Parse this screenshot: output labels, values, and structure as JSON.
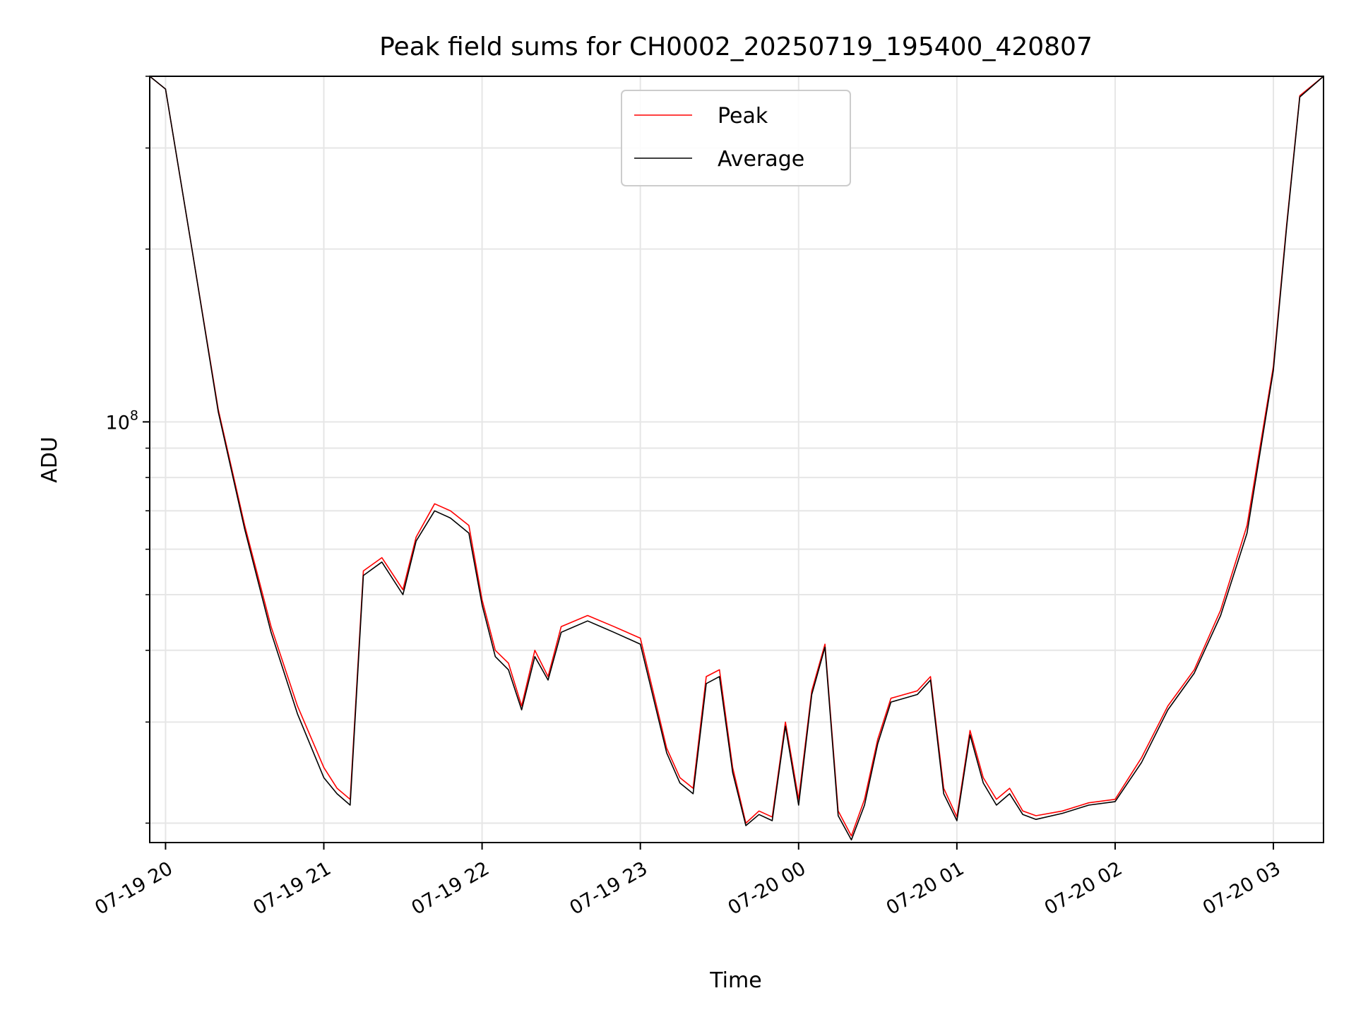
{
  "chart_data": {
    "type": "line",
    "title": "Peak field sums for CH0002_20250719_195400_420807",
    "xlabel": "Time",
    "ylabel": "ADU",
    "x_tick_labels": [
      "07-19 20",
      "07-19 21",
      "07-19 22",
      "07-19 23",
      "07-20 00",
      "07-20 01",
      "07-20 02",
      "07-20 03"
    ],
    "y_tick_major": {
      "base": "10",
      "exponent": "8",
      "value": 100000000
    },
    "yscale": "log",
    "xlim": [
      "2025-07-19 19:54",
      "2025-07-20 03:19"
    ],
    "ylim": [
      18500000,
      400000000
    ],
    "grid": true,
    "legend_position": "upper center",
    "colors": {
      "Peak": "#ff0000",
      "Average": "#000000"
    },
    "series": [
      {
        "name": "Peak",
        "x": [
          "2025-07-19 19:54",
          "2025-07-19 20:00",
          "2025-07-19 20:10",
          "2025-07-19 20:20",
          "2025-07-19 20:30",
          "2025-07-19 20:40",
          "2025-07-19 20:50",
          "2025-07-19 21:00",
          "2025-07-19 21:05",
          "2025-07-19 21:10",
          "2025-07-19 21:15",
          "2025-07-19 21:22",
          "2025-07-19 21:30",
          "2025-07-19 21:35",
          "2025-07-19 21:42",
          "2025-07-19 21:48",
          "2025-07-19 21:55",
          "2025-07-19 22:00",
          "2025-07-19 22:05",
          "2025-07-19 22:10",
          "2025-07-19 22:15",
          "2025-07-19 22:20",
          "2025-07-19 22:25",
          "2025-07-19 22:30",
          "2025-07-19 22:40",
          "2025-07-19 22:50",
          "2025-07-19 23:00",
          "2025-07-19 23:10",
          "2025-07-19 23:15",
          "2025-07-19 23:20",
          "2025-07-19 23:25",
          "2025-07-19 23:30",
          "2025-07-19 23:35",
          "2025-07-19 23:40",
          "2025-07-19 23:45",
          "2025-07-19 23:50",
          "2025-07-19 23:55",
          "2025-07-20 00:00",
          "2025-07-20 00:05",
          "2025-07-20 00:10",
          "2025-07-20 00:15",
          "2025-07-20 00:20",
          "2025-07-20 00:25",
          "2025-07-20 00:30",
          "2025-07-20 00:35",
          "2025-07-20 00:45",
          "2025-07-20 00:50",
          "2025-07-20 00:55",
          "2025-07-20 01:00",
          "2025-07-20 01:05",
          "2025-07-20 01:10",
          "2025-07-20 01:15",
          "2025-07-20 01:20",
          "2025-07-20 01:25",
          "2025-07-20 01:30",
          "2025-07-20 01:40",
          "2025-07-20 01:50",
          "2025-07-20 02:00",
          "2025-07-20 02:10",
          "2025-07-20 02:20",
          "2025-07-20 02:30",
          "2025-07-20 02:40",
          "2025-07-20 02:50",
          "2025-07-20 03:00",
          "2025-07-20 03:05",
          "2025-07-20 03:10",
          "2025-07-20 03:19"
        ],
        "y": [
          400000000,
          380000000,
          200000000,
          105000000,
          66000000,
          44000000,
          32000000,
          25000000,
          23000000,
          22000000,
          55000000,
          58000000,
          51000000,
          63000000,
          72000000,
          70000000,
          66000000,
          49000000,
          40000000,
          38000000,
          32000000,
          40000000,
          36000000,
          44000000,
          46000000,
          44000000,
          42000000,
          27000000,
          24000000,
          23000000,
          36000000,
          37000000,
          25000000,
          20000000,
          21000000,
          20500000,
          30000000,
          22000000,
          34000000,
          41000000,
          21000000,
          19000000,
          22000000,
          28000000,
          33000000,
          34000000,
          36000000,
          23000000,
          20500000,
          29000000,
          24000000,
          22000000,
          23000000,
          21000000,
          20600000,
          21000000,
          21700000,
          22000000,
          26000000,
          32000000,
          37000000,
          47000000,
          66000000,
          125000000,
          220000000,
          370000000,
          400000000
        ]
      },
      {
        "name": "Average",
        "x": [
          "2025-07-19 19:54",
          "2025-07-19 20:00",
          "2025-07-19 20:10",
          "2025-07-19 20:20",
          "2025-07-19 20:30",
          "2025-07-19 20:40",
          "2025-07-19 20:50",
          "2025-07-19 21:00",
          "2025-07-19 21:05",
          "2025-07-19 21:10",
          "2025-07-19 21:15",
          "2025-07-19 21:22",
          "2025-07-19 21:30",
          "2025-07-19 21:35",
          "2025-07-19 21:42",
          "2025-07-19 21:48",
          "2025-07-19 21:55",
          "2025-07-19 22:00",
          "2025-07-19 22:05",
          "2025-07-19 22:10",
          "2025-07-19 22:15",
          "2025-07-19 22:20",
          "2025-07-19 22:25",
          "2025-07-19 22:30",
          "2025-07-19 22:40",
          "2025-07-19 22:50",
          "2025-07-19 23:00",
          "2025-07-19 23:10",
          "2025-07-19 23:15",
          "2025-07-19 23:20",
          "2025-07-19 23:25",
          "2025-07-19 23:30",
          "2025-07-19 23:35",
          "2025-07-19 23:40",
          "2025-07-19 23:45",
          "2025-07-19 23:50",
          "2025-07-19 23:55",
          "2025-07-20 00:00",
          "2025-07-20 00:05",
          "2025-07-20 00:10",
          "2025-07-20 00:15",
          "2025-07-20 00:20",
          "2025-07-20 00:25",
          "2025-07-20 00:30",
          "2025-07-20 00:35",
          "2025-07-20 00:45",
          "2025-07-20 00:50",
          "2025-07-20 00:55",
          "2025-07-20 01:00",
          "2025-07-20 01:05",
          "2025-07-20 01:10",
          "2025-07-20 01:15",
          "2025-07-20 01:20",
          "2025-07-20 01:25",
          "2025-07-20 01:30",
          "2025-07-20 01:40",
          "2025-07-20 01:50",
          "2025-07-20 02:00",
          "2025-07-20 02:10",
          "2025-07-20 02:20",
          "2025-07-20 02:30",
          "2025-07-20 02:40",
          "2025-07-20 02:50",
          "2025-07-20 03:00",
          "2025-07-20 03:05",
          "2025-07-20 03:10",
          "2025-07-20 03:19"
        ],
        "y": [
          400000000,
          380000000,
          200000000,
          104000000,
          65000000,
          43000000,
          31000000,
          24000000,
          22500000,
          21500000,
          54000000,
          57000000,
          50000000,
          62000000,
          70000000,
          68000000,
          64000000,
          48000000,
          39000000,
          37000000,
          31500000,
          39000000,
          35500000,
          43000000,
          45000000,
          43000000,
          41000000,
          26500000,
          23500000,
          22500000,
          35000000,
          36000000,
          24500000,
          19800000,
          20700000,
          20200000,
          29500000,
          21500000,
          33500000,
          40500000,
          20600000,
          18700000,
          21500000,
          27500000,
          32500000,
          33500000,
          35500000,
          22500000,
          20200000,
          28500000,
          23500000,
          21500000,
          22500000,
          20700000,
          20300000,
          20800000,
          21500000,
          21800000,
          25500000,
          31500000,
          36500000,
          46000000,
          64000000,
          123000000,
          218000000,
          368000000,
          400000000
        ]
      }
    ]
  }
}
